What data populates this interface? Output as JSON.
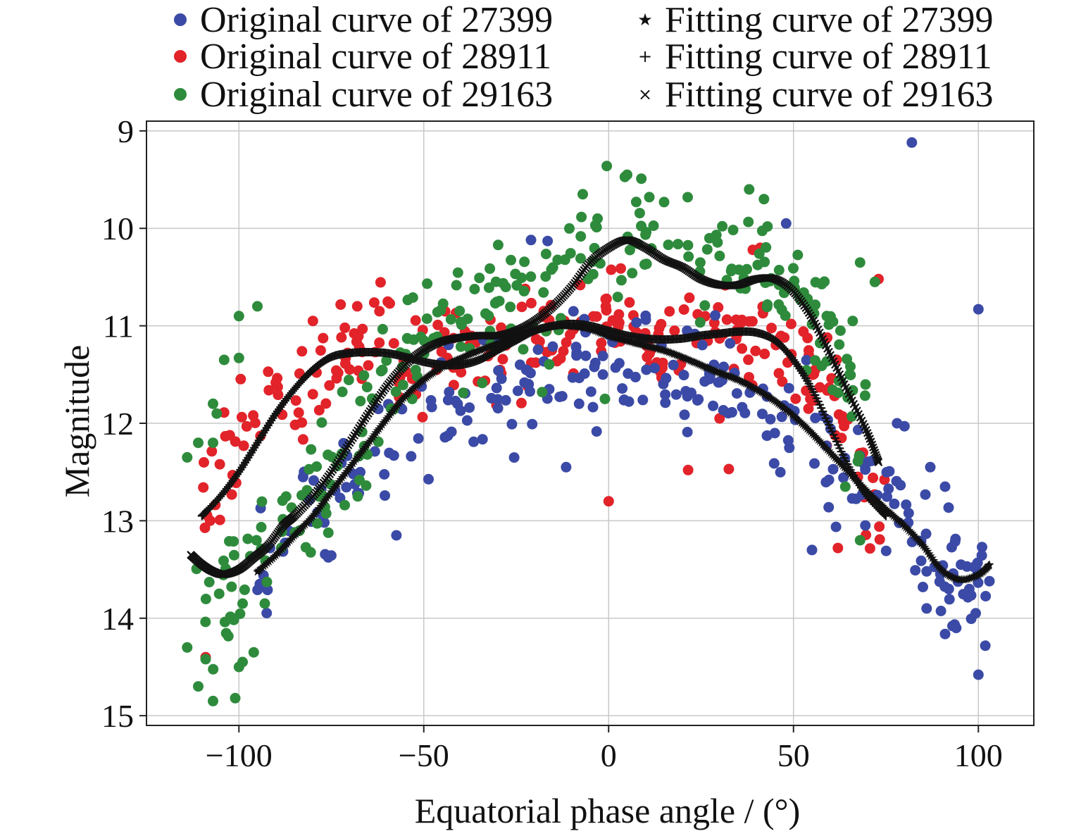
{
  "chart_data": {
    "type": "scatter",
    "title": "",
    "xlabel": "Equatorial phase angle / (°)",
    "ylabel": "Magnitude",
    "xlim": [
      -125,
      115
    ],
    "ylim": [
      15.1,
      8.9
    ],
    "y_inverted": true,
    "grid": true,
    "legend_position": "top",
    "xticks": [
      -100,
      -50,
      0,
      50,
      100
    ],
    "xtick_labels": [
      "−100",
      "−50",
      "0",
      "50",
      "100"
    ],
    "yticks": [
      9,
      10,
      11,
      12,
      13,
      14,
      15
    ],
    "ytick_labels": [
      "9",
      "10",
      "11",
      "12",
      "13",
      "14",
      "15"
    ],
    "series": [
      {
        "name": "Original curve of 27399",
        "kind": "points",
        "marker": "circle",
        "color": "#3b4aa6",
        "anchors": [
          [
            -95,
            13.55
          ],
          [
            -80,
            12.85
          ],
          [
            -72,
            12.65
          ],
          [
            -65,
            12.45
          ],
          [
            -58,
            12.1
          ],
          [
            -50,
            11.85
          ],
          [
            -40,
            11.75
          ],
          [
            -30,
            11.6
          ],
          [
            -20,
            11.5
          ],
          [
            -10,
            11.45
          ],
          [
            0,
            11.4
          ],
          [
            10,
            11.4
          ],
          [
            20,
            11.45
          ],
          [
            30,
            11.55
          ],
          [
            40,
            11.75
          ],
          [
            50,
            12.0
          ],
          [
            60,
            12.3
          ],
          [
            70,
            12.7
          ],
          [
            80,
            13.0
          ],
          [
            90,
            13.6
          ],
          [
            103,
            13.8
          ]
        ],
        "spread": 0.3,
        "outliers": [
          [
            -57.4,
            13.15
          ],
          [
            -11.5,
            12.45
          ],
          [
            -21,
            10.12
          ],
          [
            -16.5,
            10.13
          ],
          [
            -8,
            11.8
          ],
          [
            82,
            9.12
          ],
          [
            100,
            10.83
          ],
          [
            100,
            14.58
          ],
          [
            101,
            13.27
          ],
          [
            103,
            13.62
          ],
          [
            94,
            14.1
          ],
          [
            93,
            14.08
          ],
          [
            86,
            13.9
          ],
          [
            85,
            13.68
          ],
          [
            86,
            13.52
          ],
          [
            92,
            13.7
          ],
          [
            78,
            12.0
          ],
          [
            80,
            12.03
          ],
          [
            91,
            12.65
          ],
          [
            55,
            13.3
          ],
          [
            87,
            12.45
          ],
          [
            48,
            9.95
          ]
        ]
      },
      {
        "name": "Original curve of 28911",
        "kind": "points",
        "marker": "circle",
        "color": "#e2232a",
        "anchors": [
          [
            -110,
            12.9
          ],
          [
            -100,
            12.2
          ],
          [
            -90,
            11.8
          ],
          [
            -80,
            11.5
          ],
          [
            -70,
            11.2
          ],
          [
            -60,
            11.2
          ],
          [
            -50,
            11.3
          ],
          [
            -40,
            11.3
          ],
          [
            -30,
            11.2
          ],
          [
            -20,
            11.1
          ],
          [
            -10,
            11.0
          ],
          [
            0,
            11.0
          ],
          [
            10,
            11.1
          ],
          [
            20,
            11.2
          ],
          [
            30,
            11.2
          ],
          [
            40,
            11.25
          ],
          [
            50,
            11.4
          ],
          [
            60,
            11.8
          ],
          [
            70,
            12.6
          ],
          [
            75,
            12.9
          ]
        ],
        "spread": 0.28,
        "outliers": [
          [
            0,
            12.8
          ],
          [
            -109,
            14.4
          ],
          [
            21.5,
            12.48
          ],
          [
            32.5,
            12.47
          ],
          [
            62,
            13.28
          ],
          [
            39,
            10.22
          ],
          [
            41,
            10.2
          ],
          [
            73,
            10.52
          ],
          [
            30,
            11.95
          ],
          [
            -80,
            10.95
          ],
          [
            -68,
            10.8
          ],
          [
            -62,
            10.85
          ],
          [
            -79,
            11.48
          ]
        ]
      },
      {
        "name": "Original curve of 29163",
        "kind": "points",
        "marker": "circle",
        "color": "#2e8b3c",
        "anchors": [
          [
            -112,
            13.3
          ],
          [
            -105,
            13.9
          ],
          [
            -100,
            13.5
          ],
          [
            -95,
            13.3
          ],
          [
            -85,
            12.9
          ],
          [
            -75,
            12.4
          ],
          [
            -65,
            11.9
          ],
          [
            -55,
            11.4
          ],
          [
            -45,
            11.0
          ],
          [
            -35,
            10.8
          ],
          [
            -25,
            10.7
          ],
          [
            -15,
            10.6
          ],
          [
            -5,
            10.3
          ],
          [
            0,
            10.1
          ],
          [
            5,
            10.0
          ],
          [
            15,
            10.3
          ],
          [
            25,
            10.5
          ],
          [
            35,
            10.4
          ],
          [
            45,
            10.5
          ],
          [
            55,
            10.9
          ],
          [
            65,
            11.5
          ],
          [
            70,
            12.1
          ]
        ],
        "spread": 0.32,
        "outliers": [
          [
            -114,
            14.3
          ],
          [
            -109,
            14.42
          ],
          [
            -111,
            14.7
          ],
          [
            -107,
            14.85
          ],
          [
            -101,
            14.82
          ],
          [
            -100,
            14.5
          ],
          [
            -99,
            14.45
          ],
          [
            -96,
            14.35
          ],
          [
            -102,
            14.0
          ],
          [
            -99,
            13.85
          ],
          [
            -93,
            13.85
          ],
          [
            -104,
            11.35
          ],
          [
            -100,
            11.33
          ],
          [
            -100,
            10.9
          ],
          [
            -95,
            10.8
          ],
          [
            -107,
            11.8
          ],
          [
            -106,
            11.9
          ],
          [
            -114,
            12.35
          ],
          [
            -111,
            12.2
          ],
          [
            -107,
            12.2
          ],
          [
            -0.5,
            9.36
          ],
          [
            5,
            9.45
          ],
          [
            11,
            9.68
          ],
          [
            15,
            9.73
          ],
          [
            -7,
            9.65
          ],
          [
            -3,
            9.9
          ],
          [
            38,
            9.6
          ],
          [
            42,
            9.7
          ],
          [
            68,
            10.35
          ],
          [
            72,
            10.55
          ],
          [
            66,
            10.95
          ],
          [
            59,
            10.9
          ],
          [
            -1,
            11.75
          ],
          [
            -18,
            11.68
          ],
          [
            64,
            12.65
          ],
          [
            68,
            13.2
          ]
        ]
      },
      {
        "name": "Fitting curve of 27399",
        "kind": "fit",
        "marker": "star",
        "color": "#111111",
        "x": [
          -95,
          -90,
          -85,
          -80,
          -75,
          -70,
          -65,
          -60,
          -55,
          -50,
          -45,
          -40,
          -35,
          -30,
          -25,
          -20,
          -15,
          -10,
          -5,
          0,
          5,
          10,
          15,
          20,
          25,
          30,
          35,
          40,
          45,
          50,
          55,
          60,
          65,
          70,
          75,
          80,
          85,
          90,
          95,
          100,
          103
        ],
        "y": [
          13.52,
          13.35,
          13.15,
          12.95,
          12.7,
          12.45,
          12.2,
          11.95,
          11.72,
          11.55,
          11.42,
          11.33,
          11.25,
          11.18,
          11.1,
          11.04,
          11.0,
          11.0,
          11.03,
          11.1,
          11.15,
          11.2,
          11.25,
          11.32,
          11.4,
          11.48,
          11.55,
          11.65,
          11.77,
          11.92,
          12.1,
          12.3,
          12.5,
          12.7,
          12.88,
          13.05,
          13.25,
          13.5,
          13.6,
          13.55,
          13.45
        ]
      },
      {
        "name": "Fitting curve of 28911",
        "kind": "fit",
        "marker": "plus",
        "color": "#111111",
        "x": [
          -110,
          -105,
          -100,
          -95,
          -90,
          -85,
          -80,
          -75,
          -70,
          -65,
          -60,
          -55,
          -50,
          -45,
          -40,
          -35,
          -30,
          -25,
          -20,
          -15,
          -10,
          -5,
          0,
          5,
          10,
          15,
          20,
          25,
          30,
          35,
          40,
          45,
          50,
          55,
          60,
          65,
          70,
          75
        ],
        "y": [
          12.95,
          12.75,
          12.5,
          12.2,
          11.9,
          11.65,
          11.45,
          11.32,
          11.28,
          11.27,
          11.28,
          11.32,
          11.37,
          11.4,
          11.4,
          11.35,
          11.25,
          11.15,
          11.05,
          11.0,
          10.98,
          11.0,
          11.05,
          11.1,
          11.13,
          11.14,
          11.13,
          11.1,
          11.08,
          11.06,
          11.07,
          11.15,
          11.35,
          11.65,
          12.05,
          12.45,
          12.75,
          12.95
        ]
      },
      {
        "name": "Fitting curve of 29163",
        "kind": "fit",
        "marker": "x",
        "color": "#111111",
        "x": [
          -113,
          -110,
          -107,
          -104,
          -100,
          -96,
          -92,
          -88,
          -85,
          -80,
          -75,
          -70,
          -65,
          -60,
          -55,
          -50,
          -45,
          -40,
          -35,
          -30,
          -25,
          -20,
          -15,
          -10,
          -5,
          0,
          5,
          10,
          15,
          20,
          25,
          30,
          35,
          40,
          45,
          50,
          55,
          60,
          65,
          70,
          73
        ],
        "y": [
          13.35,
          13.45,
          13.52,
          13.55,
          13.5,
          13.38,
          13.25,
          13.05,
          12.95,
          12.75,
          12.5,
          12.2,
          11.9,
          11.62,
          11.4,
          11.25,
          11.16,
          11.12,
          11.1,
          11.1,
          11.05,
          10.95,
          10.8,
          10.6,
          10.35,
          10.2,
          10.12,
          10.2,
          10.32,
          10.4,
          10.52,
          10.58,
          10.58,
          10.52,
          10.52,
          10.65,
          10.92,
          11.3,
          11.7,
          12.1,
          12.4
        ]
      }
    ]
  }
}
